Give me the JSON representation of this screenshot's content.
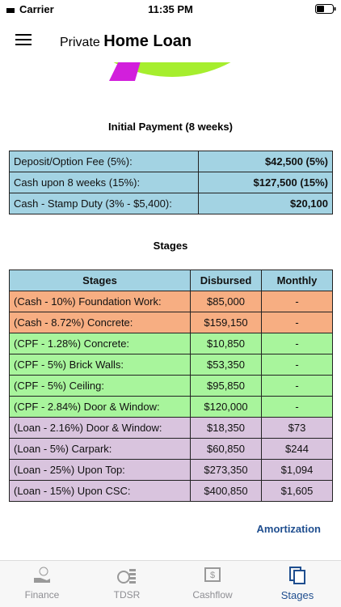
{
  "status_bar": {
    "carrier": "Carrier",
    "time": "11:35 PM"
  },
  "header": {
    "prefix": "Private",
    "title": "Home Loan"
  },
  "initial_payment": {
    "title": "Initial Payment (8 weeks)",
    "rows": [
      [
        "Deposit/Option Fee (5%):",
        "$42,500 (5%)"
      ],
      [
        "Cash upon 8 weeks (15%):",
        "$127,500 (15%)"
      ],
      [
        "Cash - Stamp Duty (3% - $5,400):",
        "$20,100"
      ]
    ]
  },
  "stages": {
    "title": "Stages",
    "columns": [
      "Stages",
      "Disbursed",
      "Monthly"
    ],
    "rows": [
      [
        "(Cash - 10%) Foundation Work:",
        "$85,000",
        "-"
      ],
      [
        "(Cash - 8.72%) Concrete:",
        "$159,150",
        "-"
      ],
      [
        "(CPF - 1.28%) Concrete:",
        "$10,850",
        "-"
      ],
      [
        "(CPF - 5%) Brick Walls:",
        "$53,350",
        "-"
      ],
      [
        "(CPF - 5%) Ceiling:",
        "$95,850",
        "-"
      ],
      [
        "(CPF - 2.84%) Door & Window:",
        "$120,000",
        "-"
      ],
      [
        "(Loan - 2.16%) Door & Window:",
        "$18,350",
        "$73"
      ],
      [
        "(Loan - 5%) Carpark:",
        "$60,850",
        "$244"
      ],
      [
        "(Loan - 25%) Upon Top:",
        "$273,350",
        "$1,094"
      ],
      [
        "(Loan - 15%) Upon CSC:",
        "$400,850",
        "$1,605"
      ]
    ]
  },
  "link": "Amortization",
  "tabs": [
    "Finance",
    "TDSR",
    "Cashflow",
    "Stages"
  ]
}
